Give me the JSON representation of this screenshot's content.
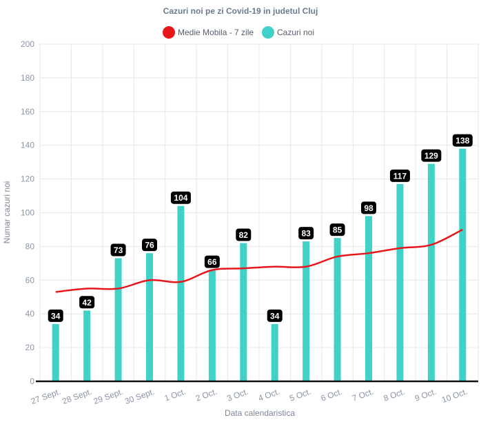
{
  "chart_data": {
    "type": "bar",
    "title": "Cazuri noi pe zi Covid-19 in judetul Cluj",
    "xlabel": "Data calendaristica",
    "ylabel": "Numar cazuri noi",
    "ylim": [
      0,
      200
    ],
    "yticks": [
      0,
      20,
      40,
      60,
      80,
      100,
      120,
      140,
      160,
      180,
      200
    ],
    "grid": true,
    "legend_position": "top",
    "categories": [
      "27 Sept.",
      "28 Sept.",
      "29 Sept.",
      "30 Sept.",
      "1 Oct.",
      "2 Oct.",
      "3 Oct.",
      "4 Oct.",
      "5 Oct.",
      "6 Oct.",
      "7 Oct.",
      "8 Oct.",
      "9 Oct.",
      "10 Oct."
    ],
    "series": [
      {
        "name": "Medie Mobila - 7 zile",
        "type": "line",
        "color": "#e8161b",
        "values": [
          53,
          55,
          55,
          60,
          59,
          66,
          67,
          68,
          68,
          74,
          76,
          79,
          81,
          90
        ]
      },
      {
        "name": "Cazuri noi",
        "type": "bar",
        "color": "#40d1c8",
        "values": [
          34,
          42,
          73,
          76,
          104,
          66,
          82,
          34,
          83,
          85,
          98,
          117,
          129,
          138
        ]
      }
    ]
  }
}
